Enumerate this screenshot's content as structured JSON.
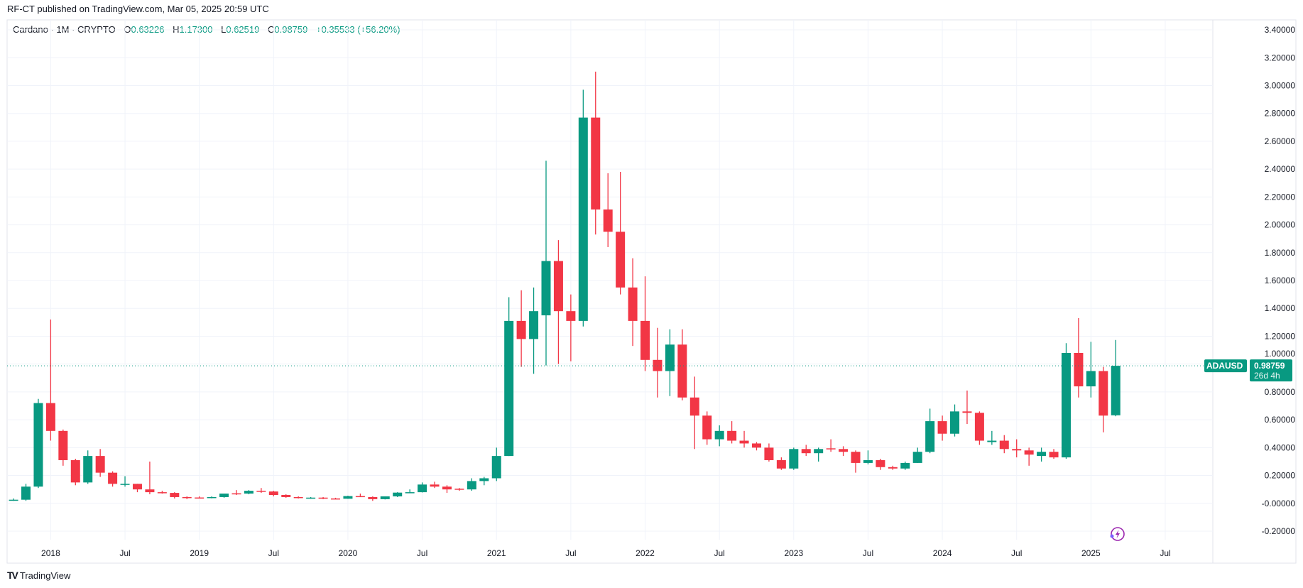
{
  "publish_line": "RF-CT published on TradingView.com, Mar 05, 2025 20:59 UTC",
  "legend": {
    "symbol": "Cardano · 1M · CRYPTO",
    "o_label": "O",
    "o": "0.63226",
    "h_label": "H",
    "h": "1.17300",
    "l_label": "L",
    "l": "0.62519",
    "c_label": "C",
    "c": "0.98759",
    "change": "+0.35533 (+56.20%)"
  },
  "price_label": {
    "symbol": "ADAUSD",
    "price": "0.98759",
    "countdown": "26d 4h"
  },
  "footer": {
    "brand": "TradingView"
  },
  "colors": {
    "up": "#089981",
    "down": "#F23645",
    "grid": "#F0F3FA",
    "text": "#131722"
  },
  "icons": [
    "lightning-alert-icon",
    "tradingview-logo-icon"
  ],
  "chart_data": {
    "type": "candlestick",
    "title": "",
    "grid": true,
    "ylim": [
      -0.2,
      3.4
    ],
    "y_ticks": [
      "3.40000",
      "3.20000",
      "3.00000",
      "2.80000",
      "2.60000",
      "2.40000",
      "2.20000",
      "2.00000",
      "1.80000",
      "1.60000",
      "1.40000",
      "1.20000",
      "1.00000",
      "0.80000",
      "0.60000",
      "0.40000",
      "0.20000",
      "-0.00000",
      "-0.20000"
    ],
    "y_tick_values": [
      3.4,
      3.2,
      3.0,
      2.8,
      2.6,
      2.4,
      2.2,
      2.0,
      1.8,
      1.6,
      1.4,
      1.2,
      1.0,
      0.8,
      0.6,
      0.4,
      0.2,
      0,
      -0.2
    ],
    "x_ticks": [
      {
        "label": "2018",
        "date": "2018-01"
      },
      {
        "label": "Jul",
        "date": "2018-07"
      },
      {
        "label": "2019",
        "date": "2019-01"
      },
      {
        "label": "Jul",
        "date": "2019-07"
      },
      {
        "label": "2020",
        "date": "2020-01"
      },
      {
        "label": "Jul",
        "date": "2020-07"
      },
      {
        "label": "2021",
        "date": "2021-01"
      },
      {
        "label": "Jul",
        "date": "2021-07"
      },
      {
        "label": "2022",
        "date": "2022-01"
      },
      {
        "label": "Jul",
        "date": "2022-07"
      },
      {
        "label": "2023",
        "date": "2023-01"
      },
      {
        "label": "Jul",
        "date": "2023-07"
      },
      {
        "label": "2024",
        "date": "2024-01"
      },
      {
        "label": "Jul",
        "date": "2024-07"
      },
      {
        "label": "2025",
        "date": "2025-01"
      },
      {
        "label": "Jul",
        "date": "2025-07"
      }
    ],
    "last_price": 0.98759,
    "candles_columns": [
      "date",
      "open",
      "high",
      "low",
      "close"
    ],
    "candles": [
      [
        "2017-10",
        0.024,
        0.035,
        0.018,
        0.026
      ],
      [
        "2017-11",
        0.026,
        0.14,
        0.018,
        0.12
      ],
      [
        "2017-12",
        0.12,
        0.75,
        0.11,
        0.72
      ],
      [
        "2018-01",
        0.72,
        1.32,
        0.45,
        0.52
      ],
      [
        "2018-02",
        0.52,
        0.53,
        0.27,
        0.31
      ],
      [
        "2018-03",
        0.31,
        0.32,
        0.13,
        0.15
      ],
      [
        "2018-04",
        0.15,
        0.38,
        0.14,
        0.34
      ],
      [
        "2018-05",
        0.34,
        0.39,
        0.19,
        0.22
      ],
      [
        "2018-06",
        0.22,
        0.23,
        0.12,
        0.14
      ],
      [
        "2018-07",
        0.135,
        0.195,
        0.12,
        0.14
      ],
      [
        "2018-08",
        0.14,
        0.14,
        0.08,
        0.1
      ],
      [
        "2018-09",
        0.1,
        0.3,
        0.065,
        0.08
      ],
      [
        "2018-10",
        0.08,
        0.09,
        0.07,
        0.075
      ],
      [
        "2018-11",
        0.075,
        0.08,
        0.035,
        0.045
      ],
      [
        "2018-12",
        0.045,
        0.05,
        0.03,
        0.04
      ],
      [
        "2019-01",
        0.042,
        0.05,
        0.035,
        0.04
      ],
      [
        "2019-02",
        0.04,
        0.05,
        0.036,
        0.045
      ],
      [
        "2019-03",
        0.045,
        0.07,
        0.04,
        0.07
      ],
      [
        "2019-04",
        0.072,
        0.095,
        0.06,
        0.07
      ],
      [
        "2019-05",
        0.07,
        0.095,
        0.065,
        0.09
      ],
      [
        "2019-06",
        0.09,
        0.11,
        0.075,
        0.085
      ],
      [
        "2019-07",
        0.085,
        0.09,
        0.05,
        0.06
      ],
      [
        "2019-08",
        0.06,
        0.065,
        0.04,
        0.045
      ],
      [
        "2019-09",
        0.045,
        0.05,
        0.035,
        0.04
      ],
      [
        "2019-10",
        0.04,
        0.045,
        0.033,
        0.041
      ],
      [
        "2019-11",
        0.041,
        0.045,
        0.03,
        0.035
      ],
      [
        "2019-12",
        0.035,
        0.04,
        0.03,
        0.033
      ],
      [
        "2020-01",
        0.033,
        0.055,
        0.032,
        0.052
      ],
      [
        "2020-02",
        0.052,
        0.07,
        0.045,
        0.045
      ],
      [
        "2020-03",
        0.045,
        0.05,
        0.018,
        0.03
      ],
      [
        "2020-04",
        0.03,
        0.05,
        0.028,
        0.05
      ],
      [
        "2020-05",
        0.05,
        0.08,
        0.045,
        0.077
      ],
      [
        "2020-06",
        0.077,
        0.1,
        0.075,
        0.08
      ],
      [
        "2020-07",
        0.08,
        0.15,
        0.078,
        0.135
      ],
      [
        "2020-08",
        0.135,
        0.155,
        0.11,
        0.12
      ],
      [
        "2020-09",
        0.12,
        0.13,
        0.075,
        0.1
      ],
      [
        "2020-10",
        0.105,
        0.11,
        0.09,
        0.1
      ],
      [
        "2020-11",
        0.1,
        0.18,
        0.09,
        0.16
      ],
      [
        "2020-12",
        0.16,
        0.19,
        0.13,
        0.18
      ],
      [
        "2021-01",
        0.18,
        0.4,
        0.16,
        0.34
      ],
      [
        "2021-02",
        0.34,
        1.48,
        0.34,
        1.31
      ],
      [
        "2021-03",
        1.31,
        1.53,
        0.98,
        1.18
      ],
      [
        "2021-04",
        1.18,
        1.55,
        0.93,
        1.38
      ],
      [
        "2021-05",
        1.35,
        2.46,
        0.99,
        1.74
      ],
      [
        "2021-06",
        1.74,
        1.89,
        1.0,
        1.38
      ],
      [
        "2021-07",
        1.38,
        1.5,
        1.02,
        1.31
      ],
      [
        "2021-08",
        1.31,
        2.97,
        1.27,
        2.77
      ],
      [
        "2021-09",
        2.77,
        3.1,
        1.93,
        2.11
      ],
      [
        "2021-10",
        2.11,
        2.37,
        1.84,
        1.95
      ],
      [
        "2021-11",
        1.95,
        2.38,
        1.5,
        1.55
      ],
      [
        "2021-12",
        1.55,
        1.76,
        1.13,
        1.31
      ],
      [
        "2022-01",
        1.31,
        1.63,
        0.95,
        1.03
      ],
      [
        "2022-02",
        1.03,
        1.26,
        0.76,
        0.95
      ],
      [
        "2022-03",
        0.95,
        1.25,
        0.77,
        1.14
      ],
      [
        "2022-04",
        1.14,
        1.25,
        0.74,
        0.76
      ],
      [
        "2022-05",
        0.76,
        0.91,
        0.39,
        0.63
      ],
      [
        "2022-06",
        0.63,
        0.66,
        0.42,
        0.46
      ],
      [
        "2022-07",
        0.46,
        0.56,
        0.41,
        0.52
      ],
      [
        "2022-08",
        0.52,
        0.59,
        0.43,
        0.45
      ],
      [
        "2022-09",
        0.45,
        0.52,
        0.4,
        0.43
      ],
      [
        "2022-10",
        0.43,
        0.44,
        0.38,
        0.4
      ],
      [
        "2022-11",
        0.4,
        0.43,
        0.3,
        0.31
      ],
      [
        "2022-12",
        0.31,
        0.33,
        0.24,
        0.25
      ],
      [
        "2023-01",
        0.25,
        0.4,
        0.24,
        0.39
      ],
      [
        "2023-02",
        0.39,
        0.42,
        0.34,
        0.36
      ],
      [
        "2023-03",
        0.36,
        0.4,
        0.3,
        0.39
      ],
      [
        "2023-04",
        0.395,
        0.46,
        0.37,
        0.39
      ],
      [
        "2023-05",
        0.39,
        0.41,
        0.34,
        0.37
      ],
      [
        "2023-06",
        0.37,
        0.38,
        0.22,
        0.29
      ],
      [
        "2023-07",
        0.29,
        0.38,
        0.28,
        0.31
      ],
      [
        "2023-08",
        0.31,
        0.32,
        0.24,
        0.26
      ],
      [
        "2023-09",
        0.26,
        0.27,
        0.24,
        0.25
      ],
      [
        "2023-10",
        0.25,
        0.3,
        0.24,
        0.29
      ],
      [
        "2023-11",
        0.29,
        0.4,
        0.29,
        0.37
      ],
      [
        "2023-12",
        0.37,
        0.68,
        0.36,
        0.59
      ],
      [
        "2024-01",
        0.59,
        0.63,
        0.45,
        0.5
      ],
      [
        "2024-02",
        0.5,
        0.71,
        0.48,
        0.66
      ],
      [
        "2024-03",
        0.66,
        0.81,
        0.57,
        0.65
      ],
      [
        "2024-04",
        0.65,
        0.66,
        0.42,
        0.45
      ],
      [
        "2024-05",
        0.44,
        0.52,
        0.42,
        0.45
      ],
      [
        "2024-06",
        0.45,
        0.49,
        0.36,
        0.39
      ],
      [
        "2024-07",
        0.39,
        0.46,
        0.33,
        0.38
      ],
      [
        "2024-08",
        0.38,
        0.4,
        0.27,
        0.35
      ],
      [
        "2024-09",
        0.34,
        0.4,
        0.3,
        0.37
      ],
      [
        "2024-10",
        0.37,
        0.39,
        0.32,
        0.33
      ],
      [
        "2024-11",
        0.33,
        1.15,
        0.32,
        1.08
      ],
      [
        "2024-12",
        1.08,
        1.33,
        0.76,
        0.84
      ],
      [
        "2025-01",
        0.84,
        1.16,
        0.76,
        0.95
      ],
      [
        "2025-02",
        0.95,
        0.98,
        0.51,
        0.63
      ],
      [
        "2025-03",
        0.63226,
        1.173,
        0.62519,
        0.98759
      ]
    ]
  }
}
